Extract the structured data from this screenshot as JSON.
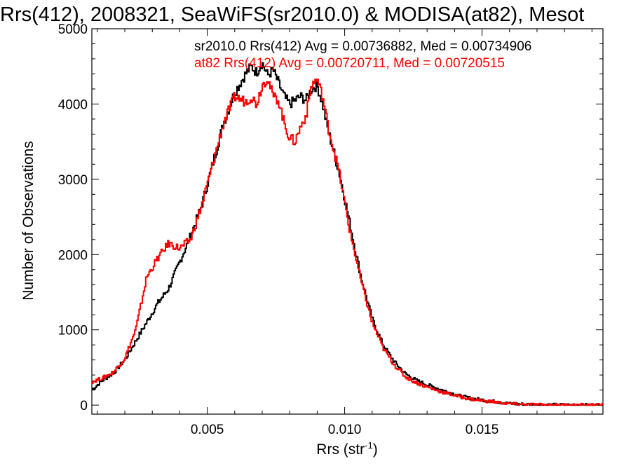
{
  "chart_data": {
    "type": "line",
    "title": "Rrs(412), 2008321, SeaWiFS(sr2010.0) & MODISA(at82), Mesot",
    "xlabel": "Rrs (str",
    "xlabel_sup": "-1",
    "xlabel_close": ")",
    "ylabel": "Number of Observations",
    "xlim": [
      0.0008,
      0.0194
    ],
    "ylim": [
      -120,
      5000
    ],
    "x_ticks": [
      0.005,
      0.01,
      0.015
    ],
    "x_tick_labels": [
      "0.005",
      "0.010",
      "0.015"
    ],
    "y_ticks": [
      0,
      1000,
      2000,
      3000,
      4000,
      5000
    ],
    "y_tick_labels": [
      "0",
      "1000",
      "2000",
      "3000",
      "4000",
      "5000"
    ],
    "grid": false,
    "legend_position": "top-right",
    "series": [
      {
        "name": "sr2010.0 Rrs(412) Avg = 0.00736882, Med = 0.00734906",
        "color": "#000000",
        "points": [
          [
            0.0008,
            200
          ],
          [
            0.0012,
            330
          ],
          [
            0.0016,
            430
          ],
          [
            0.002,
            600
          ],
          [
            0.0024,
            850
          ],
          [
            0.0028,
            1100
          ],
          [
            0.0032,
            1350
          ],
          [
            0.0036,
            1550
          ],
          [
            0.004,
            1900
          ],
          [
            0.0044,
            2250
          ],
          [
            0.0048,
            2650
          ],
          [
            0.0052,
            3200
          ],
          [
            0.0056,
            3750
          ],
          [
            0.006,
            4150
          ],
          [
            0.0064,
            4400
          ],
          [
            0.0066,
            4500
          ],
          [
            0.0068,
            4420
          ],
          [
            0.007,
            4550
          ],
          [
            0.0072,
            4380
          ],
          [
            0.0074,
            4450
          ],
          [
            0.0076,
            4280
          ],
          [
            0.0078,
            4100
          ],
          [
            0.008,
            4000
          ],
          [
            0.0082,
            4050
          ],
          [
            0.0084,
            4100
          ],
          [
            0.0086,
            4050
          ],
          [
            0.0088,
            4200
          ],
          [
            0.009,
            4250
          ],
          [
            0.0092,
            4000
          ],
          [
            0.0094,
            3650
          ],
          [
            0.0098,
            3100
          ],
          [
            0.0102,
            2400
          ],
          [
            0.0106,
            1700
          ],
          [
            0.011,
            1150
          ],
          [
            0.0114,
            800
          ],
          [
            0.0118,
            580
          ],
          [
            0.0122,
            420
          ],
          [
            0.0126,
            330
          ],
          [
            0.013,
            270
          ],
          [
            0.0134,
            220
          ],
          [
            0.0138,
            170
          ],
          [
            0.0142,
            120
          ],
          [
            0.0146,
            90
          ],
          [
            0.015,
            70
          ],
          [
            0.0156,
            40
          ],
          [
            0.016,
            20
          ],
          [
            0.0166,
            10
          ],
          [
            0.0172,
            5
          ],
          [
            0.018,
            2
          ],
          [
            0.0194,
            0
          ]
        ]
      },
      {
        "name": "at82 Rrs(412) Avg = 0.00720711, Med = 0.00720515",
        "color": "#ff0000",
        "points": [
          [
            0.0008,
            310
          ],
          [
            0.0012,
            360
          ],
          [
            0.0016,
            440
          ],
          [
            0.002,
            620
          ],
          [
            0.0024,
            1000
          ],
          [
            0.0028,
            1700
          ],
          [
            0.0032,
            1950
          ],
          [
            0.0036,
            2150
          ],
          [
            0.004,
            2080
          ],
          [
            0.0044,
            2200
          ],
          [
            0.0048,
            2650
          ],
          [
            0.0052,
            3200
          ],
          [
            0.0056,
            3750
          ],
          [
            0.006,
            4100
          ],
          [
            0.0064,
            4030
          ],
          [
            0.0066,
            4100
          ],
          [
            0.0068,
            4000
          ],
          [
            0.007,
            4250
          ],
          [
            0.0072,
            4350
          ],
          [
            0.0074,
            4100
          ],
          [
            0.0076,
            4050
          ],
          [
            0.0078,
            3750
          ],
          [
            0.008,
            3550
          ],
          [
            0.0082,
            3500
          ],
          [
            0.0084,
            3700
          ],
          [
            0.0086,
            3850
          ],
          [
            0.0088,
            4250
          ],
          [
            0.009,
            4330
          ],
          [
            0.0092,
            4100
          ],
          [
            0.0094,
            3700
          ],
          [
            0.0098,
            3100
          ],
          [
            0.0102,
            2300
          ],
          [
            0.0106,
            1650
          ],
          [
            0.011,
            1100
          ],
          [
            0.0114,
            760
          ],
          [
            0.0118,
            540
          ],
          [
            0.0122,
            380
          ],
          [
            0.0126,
            300
          ],
          [
            0.013,
            240
          ],
          [
            0.0134,
            190
          ],
          [
            0.0138,
            150
          ],
          [
            0.0142,
            110
          ],
          [
            0.0146,
            80
          ],
          [
            0.015,
            60
          ],
          [
            0.0156,
            35
          ],
          [
            0.016,
            18
          ],
          [
            0.0166,
            8
          ],
          [
            0.0172,
            4
          ],
          [
            0.018,
            2
          ],
          [
            0.0194,
            0
          ]
        ]
      }
    ]
  }
}
